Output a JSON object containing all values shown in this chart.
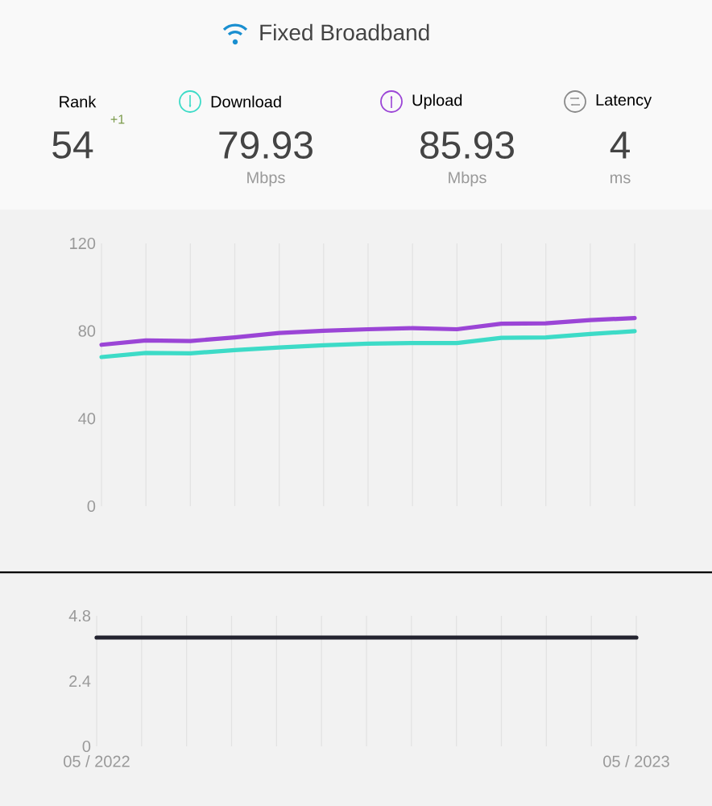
{
  "chart_data": [
    {
      "type": "other",
      "title": "Fixed Broadband",
      "annotations": [
        "Rank",
        "54",
        "+1",
        "79.93",
        "Mbps",
        "85.93",
        "Mbps",
        "4",
        "ms"
      ]
    },
    {
      "type": "line",
      "categories": [
        null,
        null,
        null,
        null,
        null,
        null,
        null,
        null,
        null,
        null,
        null,
        null,
        null
      ],
      "ylim": [
        0,
        120
      ],
      "yticks": [
        0,
        40,
        80,
        120
      ],
      "grid": "x",
      "legend": "top",
      "marker": "none",
      "line_style": "solid",
      "series": [
        {
          "name": "Download",
          "color": "#3ddbc7",
          "values": [
            68.1,
            70.0,
            69.8,
            71.3,
            72.5,
            73.5,
            74.2,
            74.5,
            74.5,
            76.9,
            77.1,
            78.6,
            79.9
          ]
        },
        {
          "name": "Upload",
          "color": "#9b45d6",
          "values": [
            73.7,
            75.7,
            75.4,
            77.1,
            79.1,
            80.1,
            80.8,
            81.3,
            80.8,
            83.3,
            83.5,
            85.0,
            85.9
          ]
        }
      ]
    },
    {
      "type": "line",
      "categories": [
        "05 / 2022",
        null,
        null,
        null,
        null,
        null,
        null,
        null,
        null,
        null,
        null,
        null,
        "05 / 2023"
      ],
      "ylim": [
        0,
        4.8
      ],
      "yticks": [
        0,
        2.4,
        4.8
      ],
      "grid": "x",
      "legend": "top",
      "marker": "none",
      "line_style": "solid",
      "series": [
        {
          "name": "Latency",
          "color": "#23232f",
          "values": [
            4,
            4,
            4,
            4,
            4,
            4,
            4,
            4,
            4,
            4,
            4,
            4,
            4
          ]
        }
      ]
    }
  ]
}
